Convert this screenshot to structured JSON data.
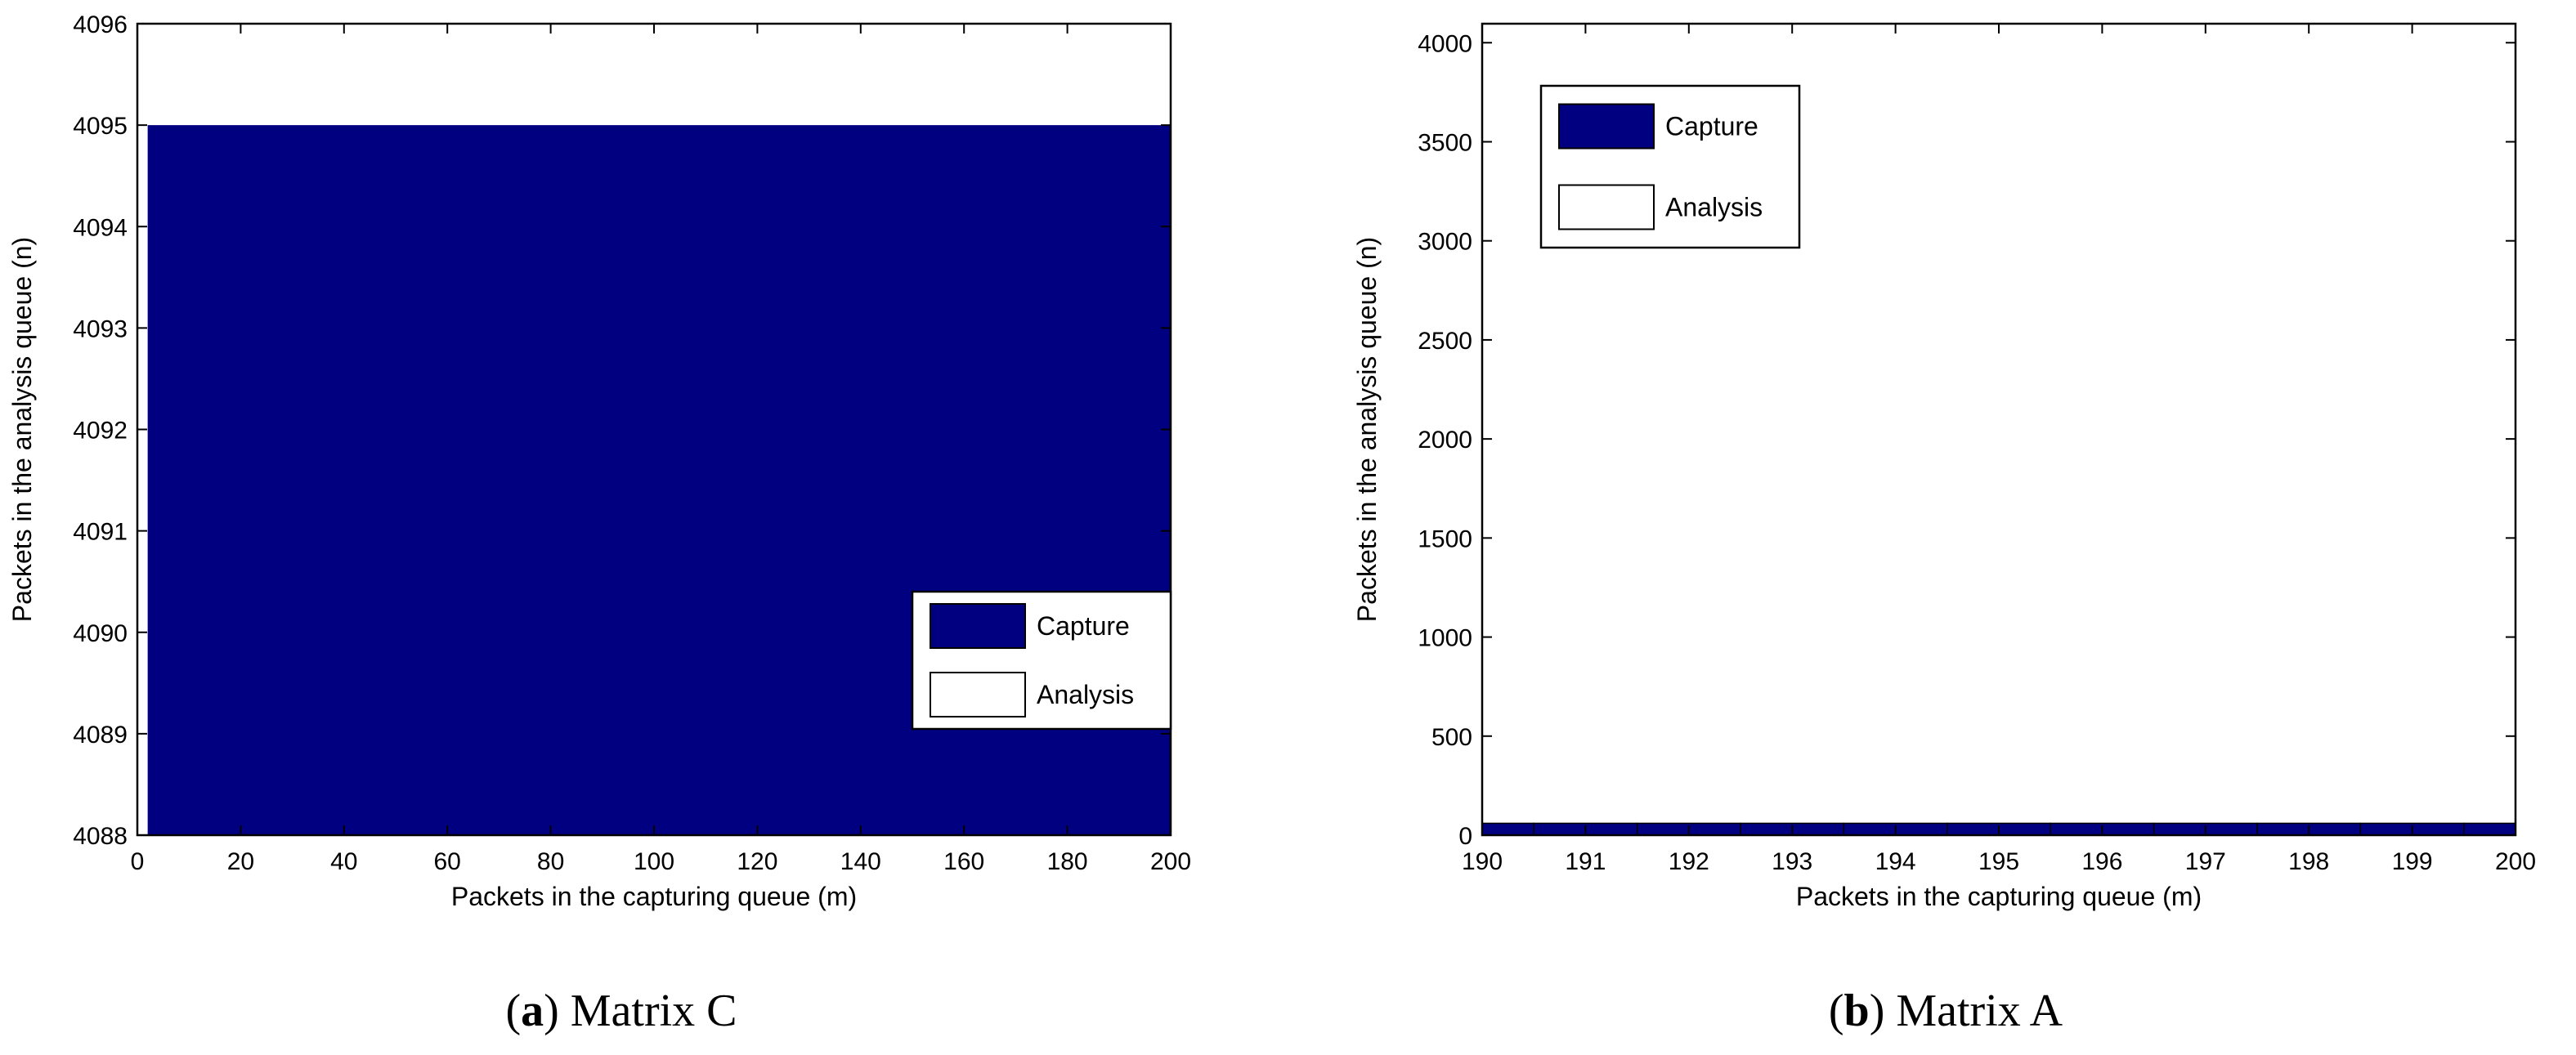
{
  "chart_data": [
    {
      "type": "area",
      "caption_letter": "a",
      "caption_text": "Matrix C",
      "xlabel": "Packets in the capturing queue (m)",
      "ylabel": "Packets in the analysis queue (n)",
      "xlim": [
        0,
        200
      ],
      "ylim": [
        4088,
        4096
      ],
      "xticks": [
        0,
        20,
        40,
        60,
        80,
        100,
        120,
        140,
        160,
        180,
        200
      ],
      "yticks": [
        4088,
        4089,
        4090,
        4091,
        4092,
        4093,
        4094,
        4095,
        4096
      ],
      "grid": false,
      "legend_position": "bottom-right",
      "legend": [
        {
          "label": "Capture",
          "color": "#000080"
        },
        {
          "label": "Analysis",
          "color": "#ffffff"
        }
      ],
      "series": [
        {
          "name": "Capture",
          "color": "#000080",
          "x_range": [
            2,
            200
          ],
          "y_upper": 4095
        }
      ]
    },
    {
      "type": "bar",
      "caption_letter": "b",
      "caption_text": "Matrix A",
      "xlabel": "Packets in the capturing queue (m)",
      "ylabel": "Packets in the analysis queue (n)",
      "xlim": [
        190,
        200
      ],
      "ylim": [
        0,
        4096
      ],
      "xticks": [
        190,
        191,
        192,
        193,
        194,
        195,
        196,
        197,
        198,
        199,
        200
      ],
      "yticks": [
        0,
        500,
        1000,
        1500,
        2000,
        2500,
        3000,
        3500,
        4000
      ],
      "grid": false,
      "legend_position": "top-left",
      "legend": [
        {
          "label": "Capture",
          "color": "#000080"
        },
        {
          "label": "Analysis",
          "color": "#ffffff"
        }
      ],
      "series": [
        {
          "name": "Capture",
          "color": "#000080",
          "categories": [
            190,
            191,
            192,
            193,
            194,
            195,
            196,
            197,
            198,
            199,
            200
          ],
          "values": [
            60,
            60,
            60,
            60,
            60,
            60,
            60,
            60,
            60,
            60,
            60
          ]
        }
      ]
    }
  ]
}
